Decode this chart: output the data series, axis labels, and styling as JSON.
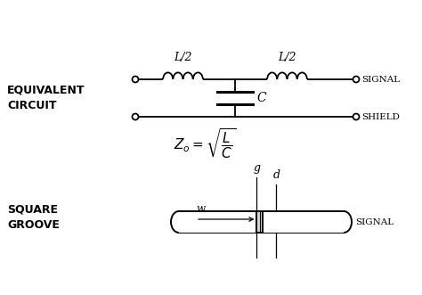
{
  "bg_color": "#ffffff",
  "label_equivalent": "EQUIVALENT\nCIRCUIT",
  "label_square": "SQUARE\nGROOVE",
  "label_signal_top": "SIGNAL",
  "label_shield": "SHIELD",
  "label_signal_bot": "SIGNAL",
  "label_L2_left": "L/2",
  "label_L2_right": "L/2",
  "label_C": "C",
  "label_g": "g",
  "label_d": "d",
  "label_w": "w",
  "formula": "$Z_o = \\sqrt{\\dfrac{L}{C}}$"
}
